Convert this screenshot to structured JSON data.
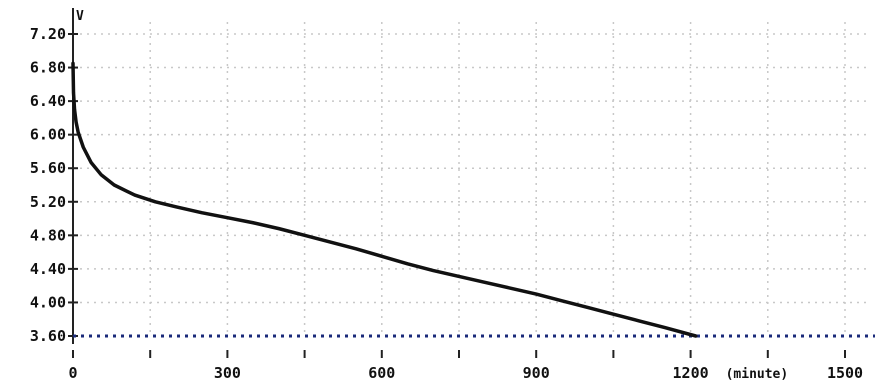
{
  "chart_data": {
    "type": "line",
    "title": "",
    "ylabel": "V",
    "xlabel": "(minute)",
    "xlim": [
      0,
      1500
    ],
    "ylim": [
      3.6,
      7.2
    ],
    "x_ticks": [
      {
        "value": 0,
        "label": "0"
      },
      {
        "value": 300,
        "label": "300"
      },
      {
        "value": 600,
        "label": "600"
      },
      {
        "value": 900,
        "label": "900"
      },
      {
        "value": 1200,
        "label": "1200"
      },
      {
        "value": 1500,
        "label": "1500"
      }
    ],
    "y_ticks": [
      {
        "value": 3.6,
        "label": "3.60"
      },
      {
        "value": 4.0,
        "label": "4.00"
      },
      {
        "value": 4.4,
        "label": "4.40"
      },
      {
        "value": 4.8,
        "label": "4.80"
      },
      {
        "value": 5.2,
        "label": "5.20"
      },
      {
        "value": 5.6,
        "label": "5.60"
      },
      {
        "value": 6.0,
        "label": "6.00"
      },
      {
        "value": 6.4,
        "label": "6.40"
      },
      {
        "value": 6.8,
        "label": "6.80"
      },
      {
        "value": 7.2,
        "label": "7.20"
      }
    ],
    "x_grid_values": [
      0,
      150,
      300,
      450,
      600,
      750,
      900,
      1050,
      1200,
      1350,
      1500
    ],
    "y_grid_values": [
      3.6,
      4.0,
      4.4,
      4.8,
      5.2,
      5.6,
      6.0,
      6.4,
      6.8,
      7.2
    ],
    "grid": true,
    "cutoff_voltage": 3.6,
    "series": [
      {
        "values": [
          [
            0,
            6.85
          ],
          [
            1,
            6.5
          ],
          [
            3,
            6.3
          ],
          [
            6,
            6.15
          ],
          [
            10,
            6.03
          ],
          [
            20,
            5.85
          ],
          [
            35,
            5.67
          ],
          [
            55,
            5.52
          ],
          [
            80,
            5.4
          ],
          [
            120,
            5.28
          ],
          [
            160,
            5.2
          ],
          [
            200,
            5.14
          ],
          [
            250,
            5.07
          ],
          [
            300,
            5.01
          ],
          [
            350,
            4.95
          ],
          [
            400,
            4.88
          ],
          [
            450,
            4.8
          ],
          [
            500,
            4.72
          ],
          [
            550,
            4.64
          ],
          [
            600,
            4.55
          ],
          [
            650,
            4.46
          ],
          [
            700,
            4.38
          ],
          [
            750,
            4.31
          ],
          [
            800,
            4.24
          ],
          [
            850,
            4.17
          ],
          [
            900,
            4.1
          ],
          [
            950,
            4.02
          ],
          [
            1000,
            3.94
          ],
          [
            1050,
            3.86
          ],
          [
            1100,
            3.78
          ],
          [
            1150,
            3.7
          ],
          [
            1210,
            3.6
          ]
        ]
      }
    ],
    "colors": {
      "line": "#111111",
      "grid": "#c8c8c8",
      "cutoff": "#1a2a7a",
      "background": "#ffffff"
    }
  }
}
